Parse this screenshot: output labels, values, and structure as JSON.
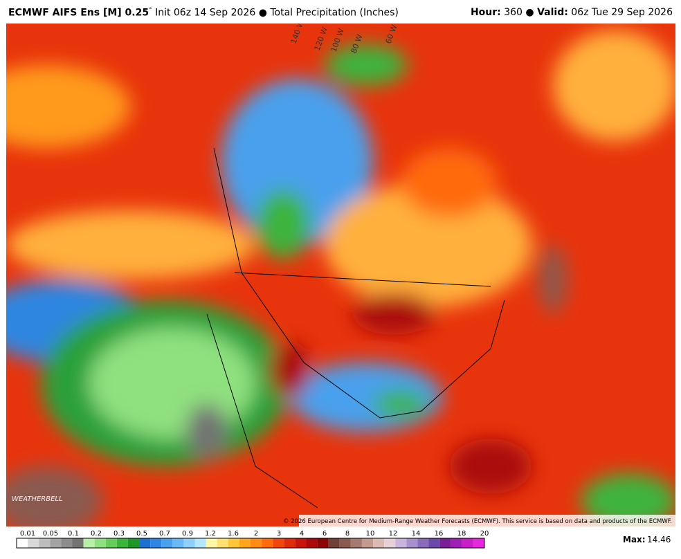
{
  "header": {
    "model": "ECMWF AIFS Ens [M] 0.25",
    "degree": "°",
    "init": "Init 06z 14 Sep 2026",
    "field": "Total Precipitation (Inches)",
    "hour_label": "Hour:",
    "hour": "360",
    "valid_label": "Valid:",
    "valid": "06z Tue 29 Sep 2026"
  },
  "map": {
    "longitudes": [
      "140 W",
      "120 W",
      "100 W",
      "80 W",
      "60 W"
    ],
    "logo": "WEATHERBELL",
    "credit": "© 2026 European Centre for Medium-Range Weather Forecasts (ECMWF). This service is based on data and products of the ECMWF."
  },
  "colorbar": {
    "labels": [
      0.01,
      0.05,
      0.1,
      0.2,
      0.3,
      0.5,
      0.7,
      0.9,
      1.2,
      1.6,
      2,
      3,
      4,
      6,
      8,
      10,
      12,
      14,
      16,
      18,
      20
    ],
    "colors": [
      "#ffffff",
      "#d9d9d9",
      "#bdbdbd",
      "#a3a3a3",
      "#8c8c8c",
      "#737373",
      "#b7f0a6",
      "#8fe07f",
      "#66cc5a",
      "#3cb43c",
      "#1e9628",
      "#1e6fd0",
      "#2f86e0",
      "#4aa0ec",
      "#6ab8f4",
      "#8fd0fa",
      "#b5e6fc",
      "#fff5a6",
      "#ffe070",
      "#ffc63c",
      "#ffa61e",
      "#ff8a14",
      "#ff6a0a",
      "#f2460a",
      "#e02a0a",
      "#c8140a",
      "#aa0a0a",
      "#8c0505",
      "#6e4038",
      "#8a5a50",
      "#a67a70",
      "#c29a90",
      "#dcbab4",
      "#e8d0d8",
      "#c8b4dc",
      "#a890cc",
      "#8a6cba",
      "#6c48a8",
      "#7a1e96",
      "#a01eb4",
      "#c81ec8",
      "#e628dc"
    ],
    "max_label": "Max:",
    "max": "14.46"
  }
}
